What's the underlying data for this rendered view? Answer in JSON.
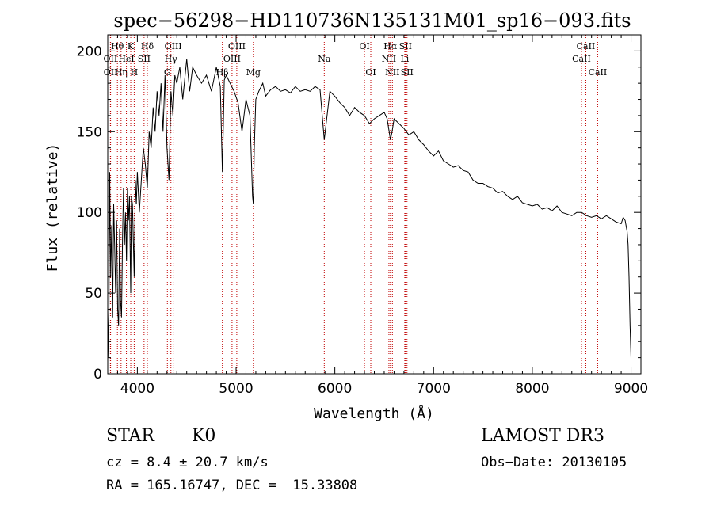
{
  "chart_data": {
    "type": "line",
    "title": "spec−56298−HD110736N135131M01_sp16−093.fits",
    "xlabel": "Wavelength (Å)",
    "ylabel": "Flux (relative)",
    "xlim": [
      3700,
      9100
    ],
    "ylim": [
      0,
      210
    ],
    "xticks": [
      4000,
      5000,
      6000,
      7000,
      8000,
      9000
    ],
    "yticks": [
      0,
      50,
      100,
      150,
      200
    ],
    "grid": false,
    "legend": "none",
    "series": [
      {
        "name": "flux",
        "x": [
          3700,
          3710,
          3720,
          3730,
          3740,
          3750,
          3760,
          3770,
          3780,
          3790,
          3800,
          3810,
          3820,
          3830,
          3840,
          3850,
          3860,
          3870,
          3880,
          3890,
          3900,
          3910,
          3920,
          3933,
          3940,
          3950,
          3968,
          3980,
          3990,
          4000,
          4020,
          4040,
          4060,
          4080,
          4101,
          4120,
          4140,
          4160,
          4180,
          4200,
          4220,
          4240,
          4260,
          4280,
          4300,
          4320,
          4340,
          4360,
          4380,
          4400,
          4430,
          4460,
          4500,
          4530,
          4560,
          4600,
          4650,
          4700,
          4750,
          4800,
          4840,
          4861,
          4880,
          4900,
          4940,
          4980,
          5020,
          5060,
          5100,
          5140,
          5167,
          5175,
          5184,
          5200,
          5230,
          5270,
          5300,
          5350,
          5400,
          5450,
          5500,
          5550,
          5600,
          5650,
          5700,
          5750,
          5800,
          5850,
          5893,
          5950,
          6000,
          6050,
          6100,
          6150,
          6200,
          6250,
          6300,
          6350,
          6400,
          6450,
          6500,
          6530,
          6563,
          6580,
          6600,
          6650,
          6700,
          6750,
          6800,
          6850,
          6900,
          6950,
          7000,
          7050,
          7100,
          7150,
          7200,
          7250,
          7300,
          7350,
          7400,
          7450,
          7500,
          7550,
          7600,
          7650,
          7700,
          7750,
          7800,
          7850,
          7900,
          7950,
          8000,
          8050,
          8100,
          8150,
          8200,
          8250,
          8300,
          8350,
          8400,
          8450,
          8500,
          8550,
          8600,
          8650,
          8700,
          8750,
          8800,
          8850,
          8900,
          8920,
          8940,
          8960,
          8970,
          8980,
          8990,
          9000
        ],
        "values": [
          40,
          10,
          125,
          60,
          92,
          35,
          105,
          80,
          50,
          95,
          40,
          30,
          90,
          45,
          35,
          85,
          115,
          80,
          100,
          70,
          115,
          95,
          110,
          50,
          110,
          105,
          60,
          120,
          105,
          125,
          100,
          120,
          140,
          130,
          115,
          150,
          140,
          165,
          150,
          175,
          160,
          180,
          150,
          185,
          140,
          120,
          175,
          160,
          185,
          180,
          190,
          170,
          195,
          175,
          190,
          185,
          180,
          185,
          175,
          190,
          178,
          125,
          182,
          185,
          180,
          175,
          168,
          150,
          170,
          160,
          110,
          105,
          140,
          170,
          175,
          180,
          172,
          176,
          178,
          175,
          176,
          174,
          178,
          175,
          176,
          175,
          178,
          176,
          145,
          175,
          172,
          168,
          165,
          160,
          165,
          162,
          160,
          155,
          158,
          160,
          162,
          158,
          145,
          150,
          158,
          155,
          152,
          148,
          150,
          145,
          142,
          138,
          135,
          138,
          132,
          130,
          128,
          129,
          126,
          125,
          120,
          118,
          118,
          116,
          115,
          112,
          113,
          110,
          108,
          110,
          106,
          105,
          104,
          105,
          102,
          103,
          101,
          104,
          100,
          99,
          98,
          100,
          100,
          98,
          97,
          98,
          96,
          98,
          96,
          94,
          93,
          97,
          95,
          88,
          80,
          60,
          30,
          10
        ]
      }
    ],
    "lines": [
      {
        "label": "Hθ",
        "x": 3798,
        "row": 0
      },
      {
        "label": "OII",
        "x": 3727,
        "row": 1
      },
      {
        "label": "OII",
        "x": 3729,
        "row": 2
      },
      {
        "label": "Hη",
        "x": 3835,
        "row": 2
      },
      {
        "label": "HeI",
        "x": 3889,
        "row": 1
      },
      {
        "label": "K",
        "x": 3933,
        "row": 0
      },
      {
        "label": "H",
        "x": 3968,
        "row": 2
      },
      {
        "label": "SII",
        "x": 4068,
        "row": 1
      },
      {
        "label": "Hδ",
        "x": 4101,
        "row": 0
      },
      {
        "label": "OIII",
        "x": 4363,
        "row": 0
      },
      {
        "label": "Hγ",
        "x": 4340,
        "row": 1
      },
      {
        "label": "G",
        "x": 4304,
        "row": 2
      },
      {
        "label": "OIII",
        "x": 5007,
        "row": 0
      },
      {
        "label": "OIII",
        "x": 4959,
        "row": 1
      },
      {
        "label": "Hβ",
        "x": 4861,
        "row": 2
      },
      {
        "label": "Mg",
        "x": 5175,
        "row": 2
      },
      {
        "label": "Na",
        "x": 5893,
        "row": 1
      },
      {
        "label": "OI",
        "x": 6300,
        "row": 0
      },
      {
        "label": "OI",
        "x": 6364,
        "row": 2
      },
      {
        "label": "Hα",
        "x": 6563,
        "row": 0
      },
      {
        "label": "SII",
        "x": 6716,
        "row": 0
      },
      {
        "label": "NII",
        "x": 6548,
        "row": 1
      },
      {
        "label": "NII",
        "x": 6583,
        "row": 2
      },
      {
        "label": "Li",
        "x": 6708,
        "row": 1
      },
      {
        "label": "SII",
        "x": 6731,
        "row": 2
      },
      {
        "label": "CaII",
        "x": 8542,
        "row": 0
      },
      {
        "label": "CaII",
        "x": 8498,
        "row": 1
      },
      {
        "label": "CaII",
        "x": 8662,
        "row": 2
      }
    ]
  },
  "info": {
    "object_class": "STAR",
    "subclass": "K0",
    "survey": "LAMOST DR3",
    "cz": "cz = 8.4 ± 20.7 km/s",
    "obs_date": "Obs−Date: 20130105",
    "coords": "RA = 165.16747, DEC =  15.33808"
  }
}
